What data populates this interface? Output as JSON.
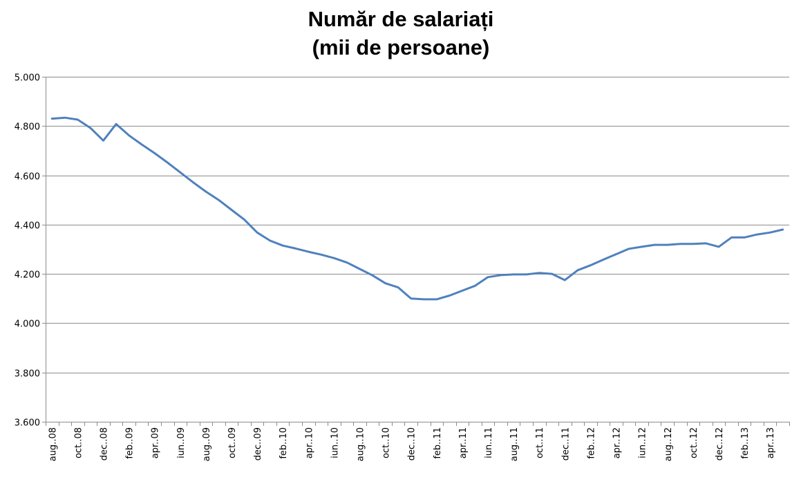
{
  "chart_data": {
    "type": "line",
    "title": [
      "Număr de salariați",
      "(mii de persoane)"
    ],
    "xlabel": "",
    "ylabel": "",
    "ylim": [
      3600,
      5000
    ],
    "yticks": [
      3600,
      3800,
      4000,
      4200,
      4400,
      4600,
      4800,
      5000
    ],
    "ytick_labels": [
      "3.600",
      "3.800",
      "4.000",
      "4.200",
      "4.400",
      "4.600",
      "4.800",
      "5.000"
    ],
    "grid": true,
    "legend": "none",
    "line_color": "#4F81BD",
    "categories": [
      "aug..08",
      "sep..08",
      "oct..08",
      "nov..08",
      "dec..08",
      "ian..09",
      "feb..09",
      "mar..09",
      "apr..09",
      "mai..09",
      "iun..09",
      "iul..09",
      "aug..09",
      "sep..09",
      "oct..09",
      "nov..09",
      "dec..09",
      "ian..10",
      "feb..10",
      "mar..10",
      "apr..10",
      "mai..10",
      "iun..10",
      "iul..10",
      "aug..10",
      "sep..10",
      "oct..10",
      "nov..10",
      "dec..10",
      "ian..11",
      "feb..11",
      "mar..11",
      "apr..11",
      "mai..11",
      "iun..11",
      "iul..11",
      "aug..11",
      "sep..11",
      "oct..11",
      "nov..11",
      "dec..11",
      "ian..12",
      "feb..12",
      "mar..12",
      "apr..12",
      "mai..12",
      "iun..12",
      "iul..12",
      "aug..12",
      "sep..12",
      "oct..12",
      "nov..12",
      "dec..12",
      "ian..13",
      "feb..13",
      "mar..13",
      "apr..13",
      "mai..13"
    ],
    "shown_tick_labels": [
      "aug..08",
      "oct..08",
      "dec..08",
      "feb..09",
      "apr..09",
      "iun..09",
      "aug..09",
      "oct..09",
      "dec..09",
      "feb..10",
      "apr..10",
      "iun..10",
      "aug..10",
      "oct..10",
      "dec..10",
      "feb..11",
      "apr..11",
      "iun..11",
      "aug..11",
      "oct..11",
      "dec..11",
      "feb..12",
      "apr..12",
      "iun..12",
      "aug..12",
      "oct..12",
      "dec..12",
      "feb..13",
      "apr..13"
    ],
    "series": [
      {
        "values": [
          4830,
          4834,
          4826,
          4792,
          4741,
          4808,
          4762,
          4725,
          4690,
          4652,
          4612,
          4572,
          4534,
          4500,
          4460,
          4420,
          4368,
          4335,
          4315,
          4303,
          4290,
          4278,
          4264,
          4246,
          4220,
          4194,
          4162,
          4145,
          4100,
          4097,
          4097,
          4112,
          4132,
          4152,
          4187,
          4195,
          4198,
          4198,
          4204,
          4200,
          4175,
          4215,
          4235,
          4258,
          4280,
          4302,
          4310,
          4318,
          4318,
          4322,
          4322,
          4324,
          4310,
          4348,
          4348,
          4360,
          4368,
          4380
        ]
      }
    ]
  }
}
